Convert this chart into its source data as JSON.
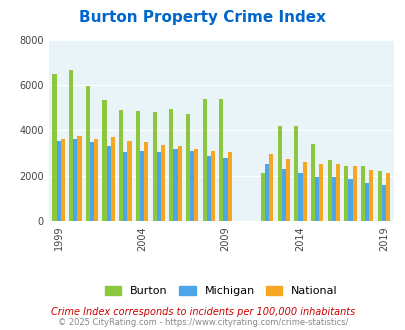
{
  "title": "Burton Property Crime Index",
  "years": [
    1999,
    2000,
    2001,
    2002,
    2003,
    2004,
    2005,
    2006,
    2007,
    2008,
    2009,
    2012,
    2013,
    2014,
    2015,
    2016,
    2017,
    2018,
    2019
  ],
  "burton": [
    6500,
    6650,
    5950,
    5350,
    4900,
    4850,
    4800,
    4950,
    4700,
    5400,
    5400,
    2100,
    4200,
    4200,
    3400,
    2700,
    2450,
    2450,
    2200
  ],
  "michigan": [
    3550,
    3600,
    3500,
    3300,
    3050,
    3100,
    3050,
    3200,
    3100,
    2850,
    2800,
    2500,
    2300,
    2100,
    1950,
    1950,
    1850,
    1700,
    1600
  ],
  "national": [
    3600,
    3750,
    3600,
    3700,
    3550,
    3500,
    3350,
    3300,
    3200,
    3100,
    3050,
    2950,
    2750,
    2600,
    2500,
    2500,
    2450,
    2250,
    2100
  ],
  "colors": {
    "burton": "#8dc63f",
    "michigan": "#4da6e8",
    "national": "#f5a623"
  },
  "bg_color": "#e8f4f8",
  "ylim": [
    0,
    8000
  ],
  "yticks": [
    0,
    2000,
    4000,
    6000,
    8000
  ],
  "subtitle": "Crime Index corresponds to incidents per 100,000 inhabitants",
  "footer": "© 2025 CityRating.com - https://www.cityrating.com/crime-statistics/",
  "title_color": "#0066cc",
  "subtitle_color": "#cc0000",
  "footer_color": "#888888",
  "xtick_years": [
    1999,
    2004,
    2009,
    2014,
    2019
  ]
}
